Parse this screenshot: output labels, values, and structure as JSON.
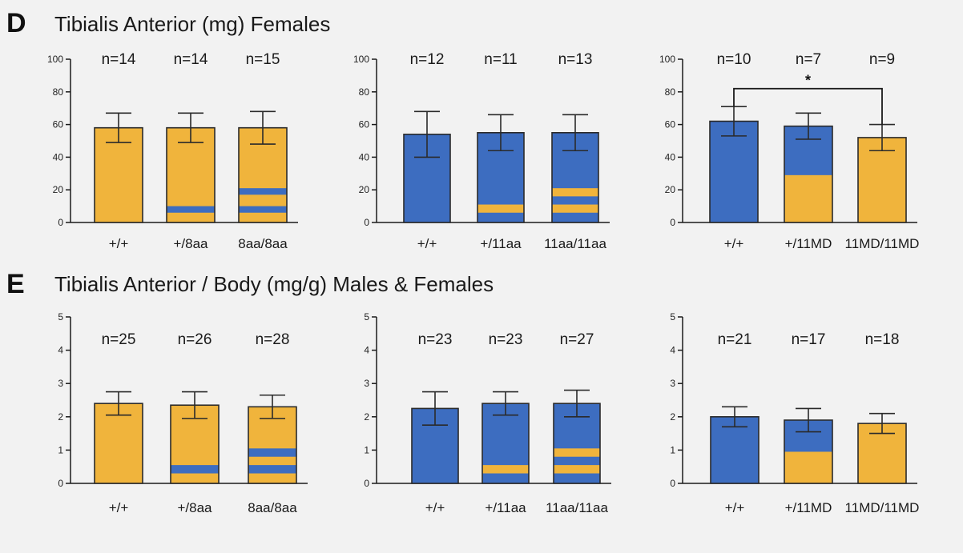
{
  "colors": {
    "orange": "#F0B43C",
    "blue": "#3D6DC0",
    "outline": "#2a2a2a",
    "axis": "#1a1a1a",
    "background": "#f2f2f2"
  },
  "panels": [
    {
      "letter": "D",
      "title": "Tibialis Anterior (mg) Females",
      "chart_data": [
        {
          "type": "bar",
          "ylim": [
            0,
            100
          ],
          "yticks": [
            0,
            20,
            40,
            60,
            80,
            100
          ],
          "categories": [
            "+/+",
            "+/8aa",
            "8aa/8aa"
          ],
          "values": [
            58,
            58,
            58
          ],
          "errors": [
            9,
            9,
            10
          ],
          "n_labels": [
            "n=14",
            "n=14",
            "n=15"
          ],
          "base_color": "orange",
          "stripe_color": "blue",
          "stripes": [
            [],
            [
              [
                6,
                10
              ]
            ],
            [
              [
                6,
                10
              ],
              [
                17,
                21
              ]
            ]
          ],
          "split": [
            null,
            null,
            null
          ]
        },
        {
          "type": "bar",
          "ylim": [
            0,
            100
          ],
          "yticks": [
            0,
            20,
            40,
            60,
            80,
            100
          ],
          "categories": [
            "+/+",
            "+/11aa",
            "11aa/11aa"
          ],
          "values": [
            54,
            55,
            55
          ],
          "errors": [
            14,
            11,
            11
          ],
          "n_labels": [
            "n=12",
            "n=11",
            "n=13"
          ],
          "base_color": "blue",
          "stripe_color": "orange",
          "stripes": [
            [],
            [
              [
                6,
                11
              ]
            ],
            [
              [
                6,
                11
              ],
              [
                16,
                21
              ]
            ]
          ],
          "split": [
            null,
            null,
            null
          ]
        },
        {
          "type": "bar",
          "ylim": [
            0,
            100
          ],
          "yticks": [
            0,
            20,
            40,
            60,
            80,
            100
          ],
          "categories": [
            "+/+",
            "+/11MD",
            "11MD/11MD"
          ],
          "values": [
            62,
            59,
            52
          ],
          "errors": [
            9,
            8,
            8
          ],
          "n_labels": [
            "n=10",
            "n=7",
            "n=9"
          ],
          "colors": [
            "blue",
            "blue",
            "orange"
          ],
          "split": [
            null,
            29,
            null
          ],
          "split_lower_color": "orange",
          "stripes": [
            [],
            [],
            []
          ],
          "significance": {
            "from": 0,
            "to": 2,
            "y": 82,
            "label": "*"
          }
        }
      ]
    },
    {
      "letter": "E",
      "title": "Tibialis Anterior / Body (mg/g) Males & Females",
      "chart_data": [
        {
          "type": "bar",
          "ylim": [
            0,
            5
          ],
          "yticks": [
            0,
            1,
            2,
            3,
            4,
            5
          ],
          "categories": [
            "+/+",
            "+/8aa",
            "8aa/8aa"
          ],
          "values": [
            2.4,
            2.35,
            2.3
          ],
          "errors": [
            0.35,
            0.4,
            0.35
          ],
          "n_labels": [
            "n=25",
            "n=26",
            "n=28"
          ],
          "base_color": "orange",
          "stripe_color": "blue",
          "stripes": [
            [],
            [
              [
                0.3,
                0.55
              ]
            ],
            [
              [
                0.3,
                0.55
              ],
              [
                0.8,
                1.05
              ]
            ]
          ],
          "split": [
            null,
            null,
            null
          ]
        },
        {
          "type": "bar",
          "ylim": [
            0,
            5
          ],
          "yticks": [
            0,
            1,
            2,
            3,
            4,
            5
          ],
          "categories": [
            "+/+",
            "+/11aa",
            "11aa/11aa"
          ],
          "values": [
            2.25,
            2.4,
            2.4
          ],
          "errors": [
            0.5,
            0.35,
            0.4
          ],
          "n_labels": [
            "n=23",
            "n=23",
            "n=27"
          ],
          "base_color": "blue",
          "stripe_color": "orange",
          "stripes": [
            [],
            [
              [
                0.3,
                0.55
              ]
            ],
            [
              [
                0.3,
                0.55
              ],
              [
                0.8,
                1.05
              ]
            ]
          ],
          "split": [
            null,
            null,
            null
          ]
        },
        {
          "type": "bar",
          "ylim": [
            0,
            5
          ],
          "yticks": [
            0,
            1,
            2,
            3,
            4,
            5
          ],
          "categories": [
            "+/+",
            "+/11MD",
            "11MD/11MD"
          ],
          "values": [
            2.0,
            1.9,
            1.8
          ],
          "errors": [
            0.3,
            0.35,
            0.3
          ],
          "n_labels": [
            "n=21",
            "n=17",
            "n=18"
          ],
          "colors": [
            "blue",
            "blue",
            "orange"
          ],
          "split": [
            null,
            0.95,
            null
          ],
          "split_lower_color": "orange",
          "stripes": [
            [],
            [],
            []
          ]
        }
      ]
    }
  ]
}
